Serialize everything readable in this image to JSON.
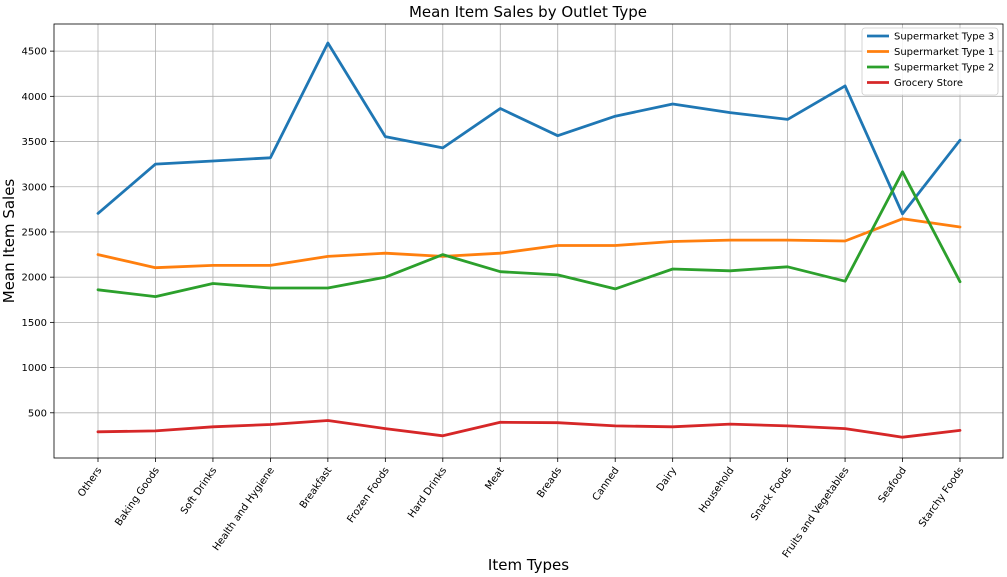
{
  "chart_data": {
    "type": "line",
    "title": "Mean Item Sales by Outlet Type",
    "xlabel": "Item Types",
    "ylabel": "Mean Item Sales",
    "categories": [
      "Others",
      "Baking Goods",
      "Soft Drinks",
      "Health and Hygiene",
      "Breakfast",
      "Frozen Foods",
      "Hard Drinks",
      "Meat",
      "Breads",
      "Canned",
      "Dairy",
      "Household",
      "Snack Foods",
      "Fruits and Vegetables",
      "Seafood",
      "Starchy Foods"
    ],
    "ylim": [
      0,
      4800
    ],
    "yticks": [
      500,
      1000,
      1500,
      2000,
      2500,
      3000,
      3500,
      4000,
      4500
    ],
    "grid": true,
    "legend_position": "top-right",
    "series": [
      {
        "name": "Supermarket Type 3",
        "color": "#1f77b4",
        "values": [
          2705,
          3250,
          3285,
          3320,
          4590,
          3555,
          3430,
          3865,
          3565,
          3780,
          3915,
          3820,
          3745,
          4115,
          2700,
          3515
        ]
      },
      {
        "name": "Supermarket Type 1",
        "color": "#ff7f0e",
        "values": [
          2250,
          2105,
          2130,
          2130,
          2230,
          2265,
          2230,
          2265,
          2350,
          2350,
          2395,
          2410,
          2410,
          2400,
          2645,
          2555
        ]
      },
      {
        "name": "Supermarket Type 2",
        "color": "#2ca02c",
        "values": [
          1860,
          1785,
          1930,
          1880,
          1880,
          2000,
          2250,
          2060,
          2025,
          1870,
          2090,
          2070,
          2115,
          1955,
          3165,
          1950
        ]
      },
      {
        "name": "Grocery Store",
        "color": "#d62728",
        "values": [
          290,
          300,
          345,
          370,
          415,
          325,
          245,
          395,
          390,
          355,
          345,
          375,
          355,
          325,
          230,
          305
        ]
      }
    ]
  }
}
